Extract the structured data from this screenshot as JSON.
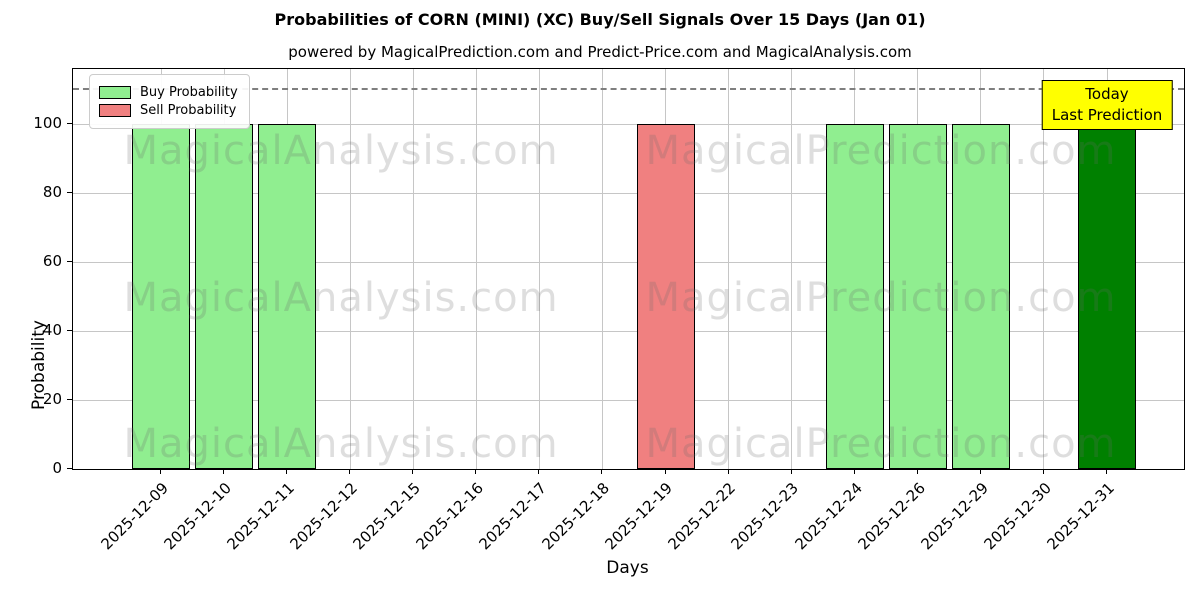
{
  "header": {
    "title": "Probabilities of CORN (MINI) (XC) Buy/Sell Signals Over 15 Days (Jan 01)",
    "subtitle": "powered by MagicalPrediction.com and Predict-Price.com and MagicalAnalysis.com"
  },
  "chart_data": {
    "type": "bar",
    "title": "Probabilities of CORN (MINI) (XC) Buy/Sell Signals Over 15 Days (Jan 01)",
    "subtitle": "powered by MagicalPrediction.com and Predict-Price.com and MagicalAnalysis.com",
    "xlabel": "Days",
    "ylabel": "Probability",
    "ylim": [
      0,
      116
    ],
    "yticks": [
      0,
      20,
      40,
      60,
      80,
      100
    ],
    "dashed_line_y": 110,
    "grid": true,
    "legend_position": "upper-left",
    "categories": [
      "2025-12-09",
      "2025-12-10",
      "2025-12-11",
      "2025-12-12",
      "2025-12-15",
      "2025-12-16",
      "2025-12-17",
      "2025-12-18",
      "2025-12-19",
      "2025-12-22",
      "2025-12-23",
      "2025-12-24",
      "2025-12-26",
      "2025-12-29",
      "2025-12-30",
      "2025-12-31"
    ],
    "series": [
      {
        "name": "Buy Probability",
        "color": "#90EE90",
        "values": [
          100,
          100,
          100,
          0,
          0,
          0,
          0,
          0,
          0,
          0,
          0,
          100,
          100,
          100,
          0,
          100
        ]
      },
      {
        "name": "Sell Probability",
        "color": "#F08080",
        "values": [
          0,
          0,
          0,
          0,
          0,
          0,
          0,
          0,
          100,
          0,
          0,
          0,
          0,
          0,
          0,
          0
        ]
      }
    ],
    "last_prediction": {
      "index": 15,
      "color": "#008000"
    }
  },
  "legend": {
    "items": [
      {
        "label": "Buy Probability",
        "color": "#90EE90"
      },
      {
        "label": "Sell Probability",
        "color": "#F08080"
      }
    ]
  },
  "annotations": {
    "today_line1": "Today",
    "today_line2": "Last Prediction",
    "today_bg": "#ffff00"
  },
  "watermarks": {
    "left_text": "MagicalAnalysis.com",
    "right_text": "MagicalPrediction.com"
  },
  "colors": {
    "bar_edge": "#000000",
    "gridline": "#c6c6c6",
    "dashed_line": "#7f7f7f",
    "watermark": "rgba(105,105,105,0.22)"
  }
}
